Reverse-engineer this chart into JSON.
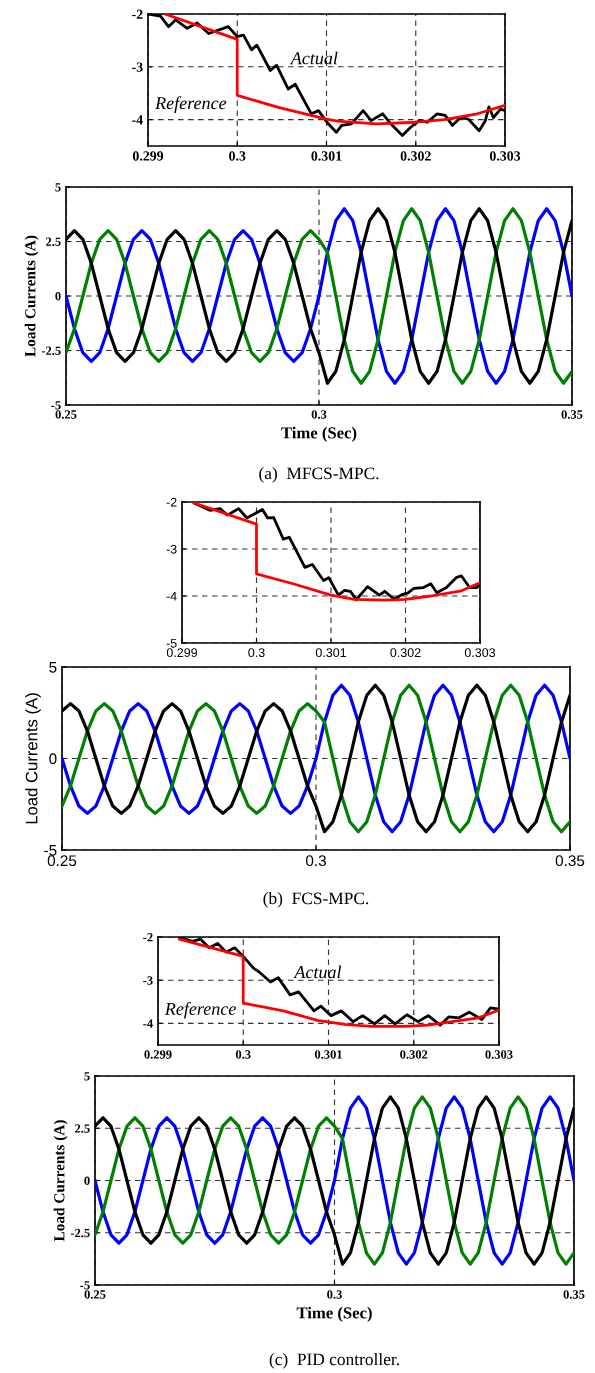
{
  "chart_data": [
    {
      "type": "line",
      "xlim": [
        0.299,
        0.303
      ],
      "ylim": [
        -4.5,
        -2
      ],
      "xticks": [
        0.299,
        0.3,
        0.301,
        0.302,
        0.303
      ],
      "yticks": [
        -2,
        -3,
        -4
      ],
      "grid": true,
      "series": [
        {
          "name": "Actual",
          "color": "#000000",
          "x": [
            0.299,
            0.29914,
            0.29923,
            0.29931,
            0.29944,
            0.29955,
            0.29968,
            0.2999,
            0.3,
            0.30007,
            0.30016,
            0.30022,
            0.30037,
            0.30044,
            0.30057,
            0.30065,
            0.30083,
            0.30091,
            0.30102,
            0.30111,
            0.30117,
            0.30128,
            0.30141,
            0.3015,
            0.30163,
            0.30172,
            0.30185,
            0.30194,
            0.30204,
            0.30213,
            0.30224,
            0.30233,
            0.30241,
            0.3025,
            0.30259,
            0.30271,
            0.30278,
            0.30282,
            0.30287,
            0.30295,
            0.303
          ],
          "values": [
            -2.0,
            -2.04,
            -2.24,
            -2.11,
            -2.27,
            -2.17,
            -2.37,
            -2.24,
            -2.43,
            -2.4,
            -2.68,
            -2.59,
            -3.07,
            -2.97,
            -3.42,
            -3.33,
            -3.89,
            -3.83,
            -4.08,
            -4.24,
            -4.11,
            -4.08,
            -3.83,
            -4.02,
            -3.89,
            -4.08,
            -4.3,
            -4.15,
            -4.02,
            -4.05,
            -3.89,
            -3.92,
            -4.11,
            -3.96,
            -3.99,
            -4.21,
            -4.02,
            -3.76,
            -3.96,
            -3.8,
            -3.83
          ]
        },
        {
          "name": "Reference",
          "color": "#ff0000",
          "x": [
            0.29919,
            0.3,
            0.3,
            0.30046,
            0.301,
            0.30112,
            0.30156,
            0.302,
            0.30232,
            0.30269,
            0.303
          ],
          "values": [
            -2.0,
            -2.48,
            -3.54,
            -3.77,
            -3.99,
            -4.03,
            -4.08,
            -4.05,
            -4.0,
            -3.89,
            -3.73
          ]
        }
      ]
    },
    {
      "type": "line",
      "xlabel": "Time (Sec)",
      "ylabel": "Load Currents (A)",
      "annotations": [
        "(a)  MFCS-MPC."
      ],
      "xlim": [
        0.25,
        0.35
      ],
      "ylim": [
        -5,
        5
      ],
      "xticks": [
        0.25,
        0.3,
        0.35
      ],
      "yticks": [
        5,
        2.5,
        0,
        -2.5,
        -5
      ],
      "grid": true,
      "x": [
        0.25,
        0.25167,
        0.25333,
        0.255,
        0.25667,
        0.25833,
        0.26,
        0.26167,
        0.26333,
        0.265,
        0.26667,
        0.26833,
        0.27,
        0.27167,
        0.27333,
        0.275,
        0.27667,
        0.27833,
        0.28,
        0.28167,
        0.28333,
        0.285,
        0.28667,
        0.28833,
        0.29,
        0.29167,
        0.29333,
        0.295,
        0.29667,
        0.29833,
        0.3,
        0.30167,
        0.30333,
        0.305,
        0.30667,
        0.30833,
        0.31,
        0.31167,
        0.31333,
        0.315,
        0.31667,
        0.31833,
        0.32,
        0.32167,
        0.32333,
        0.325,
        0.32667,
        0.32833,
        0.33,
        0.33167,
        0.33333,
        0.335,
        0.33667,
        0.33833,
        0.34,
        0.34167,
        0.34333,
        0.345,
        0.34667,
        0.34833,
        0.35
      ],
      "series": [
        {
          "color": "#0000ff",
          "values": [
            0,
            -1.5,
            -2.6,
            -3,
            -2.6,
            -1.5,
            0,
            1.5,
            2.6,
            3,
            2.6,
            1.5,
            0,
            -1.5,
            -2.6,
            -3,
            -2.6,
            -1.5,
            0,
            1.5,
            2.6,
            3,
            2.6,
            1.5,
            0,
            -1.5,
            -2.6,
            -3,
            -2.6,
            -1.5,
            0,
            2,
            3.46,
            4,
            3.46,
            2,
            0,
            -2,
            -3.46,
            -4,
            -3.46,
            -2,
            0,
            2,
            3.46,
            4,
            3.46,
            2,
            0,
            -2,
            -3.46,
            -4,
            -3.46,
            -2,
            0,
            2,
            3.46,
            4,
            3.46,
            2,
            0
          ]
        },
        {
          "color": "#008000",
          "values": [
            -2.6,
            -1.5,
            0,
            1.5,
            2.6,
            3,
            2.6,
            1.5,
            0,
            -1.5,
            -2.6,
            -3,
            -2.6,
            -1.5,
            0,
            1.5,
            2.6,
            3,
            2.6,
            1.5,
            0,
            -1.5,
            -2.6,
            -3,
            -2.6,
            -1.5,
            0,
            1.5,
            2.6,
            3,
            2.6,
            2,
            0,
            -2,
            -3.46,
            -4,
            -3.46,
            -2,
            0,
            2,
            3.46,
            4,
            3.46,
            2,
            0,
            -2,
            -3.46,
            -4,
            -3.46,
            -2,
            0,
            2,
            3.46,
            4,
            3.46,
            2,
            0,
            -2,
            -3.46,
            -4,
            -3.46
          ]
        },
        {
          "color": "#000000",
          "values": [
            2.6,
            3,
            2.6,
            1.5,
            0,
            -1.5,
            -2.6,
            -3,
            -2.6,
            -1.5,
            0,
            1.5,
            2.6,
            3,
            2.6,
            1.5,
            0,
            -1.5,
            -2.6,
            -3,
            -2.6,
            -1.5,
            0,
            1.5,
            2.6,
            3,
            2.6,
            1.5,
            0,
            -1.5,
            -2.6,
            -4,
            -3.46,
            -2,
            0,
            2,
            3.46,
            4,
            3.46,
            2,
            0,
            -2,
            -3.46,
            -4,
            -3.46,
            -2,
            0,
            2,
            3.46,
            4,
            3.46,
            2,
            0,
            -2,
            -3.46,
            -4,
            -3.46,
            -2,
            0,
            2,
            3.46
          ]
        }
      ]
    },
    {
      "type": "line",
      "xlim": [
        0.299,
        0.303
      ],
      "ylim": [
        -5,
        -2
      ],
      "xticks": [
        0.299,
        0.3,
        0.301,
        0.302,
        0.303
      ],
      "yticks": [
        -2,
        -3,
        -4,
        -5
      ],
      "grid": true,
      "series": [
        {
          "color": "#000000",
          "x": [
            0.29916,
            0.29938,
            0.29951,
            0.29961,
            0.29976,
            0.29987,
            0.30008,
            0.30015,
            0.30023,
            0.30036,
            0.30044,
            0.30065,
            0.30075,
            0.3009,
            0.30097,
            0.3011,
            0.30118,
            0.30126,
            0.30134,
            0.30149,
            0.30165,
            0.30172,
            0.30185,
            0.30195,
            0.30203,
            0.30211,
            0.30224,
            0.30234,
            0.30242,
            0.30255,
            0.30268,
            0.30275,
            0.30286,
            0.30296,
            0.303
          ],
          "values": [
            -2.02,
            -2.18,
            -2.14,
            -2.28,
            -2.14,
            -2.34,
            -2.16,
            -2.34,
            -2.33,
            -2.79,
            -2.75,
            -3.39,
            -3.33,
            -3.67,
            -3.61,
            -3.98,
            -3.88,
            -3.9,
            -4.08,
            -3.8,
            -3.98,
            -3.9,
            -4.07,
            -3.97,
            -3.94,
            -3.84,
            -3.82,
            -3.74,
            -3.93,
            -3.82,
            -3.61,
            -3.57,
            -3.82,
            -3.82,
            -3.72
          ]
        },
        {
          "color": "#ff0000",
          "x": [
            0.29916,
            0.3,
            0.3,
            0.30049,
            0.301,
            0.30131,
            0.30172,
            0.302,
            0.30234,
            0.30275,
            0.303
          ],
          "values": [
            -2.02,
            -2.47,
            -3.53,
            -3.74,
            -3.98,
            -4.07,
            -4.09,
            -4.07,
            -4.0,
            -3.89,
            -3.72
          ]
        }
      ]
    },
    {
      "type": "line",
      "ylabel": "Load Currents (A)",
      "annotations": [
        "(b)  FCS-MPC."
      ],
      "xlim": [
        0.25,
        0.35
      ],
      "ylim": [
        -5,
        5
      ],
      "xticks": [
        0.25,
        0.3,
        0.35
      ],
      "yticks": [
        5,
        0,
        -5
      ],
      "grid": true,
      "x": [
        0.25,
        0.25167,
        0.25333,
        0.255,
        0.25667,
        0.25833,
        0.26,
        0.26167,
        0.26333,
        0.265,
        0.26667,
        0.26833,
        0.27,
        0.27167,
        0.27333,
        0.275,
        0.27667,
        0.27833,
        0.28,
        0.28167,
        0.28333,
        0.285,
        0.28667,
        0.28833,
        0.29,
        0.29167,
        0.29333,
        0.295,
        0.29667,
        0.29833,
        0.3,
        0.30167,
        0.30333,
        0.305,
        0.30667,
        0.30833,
        0.31,
        0.31167,
        0.31333,
        0.315,
        0.31667,
        0.31833,
        0.32,
        0.32167,
        0.32333,
        0.325,
        0.32667,
        0.32833,
        0.33,
        0.33167,
        0.33333,
        0.335,
        0.33667,
        0.33833,
        0.34,
        0.34167,
        0.34333,
        0.345,
        0.34667,
        0.34833,
        0.35
      ],
      "series": [
        {
          "color": "#0000ff",
          "values": [
            0,
            -1.5,
            -2.6,
            -3,
            -2.6,
            -1.5,
            0,
            1.5,
            2.6,
            3,
            2.6,
            1.5,
            0,
            -1.5,
            -2.6,
            -3,
            -2.6,
            -1.5,
            0,
            1.5,
            2.6,
            3,
            2.6,
            1.5,
            0,
            -1.5,
            -2.6,
            -3,
            -2.6,
            -1.5,
            0,
            2,
            3.46,
            4,
            3.46,
            2,
            0,
            -2,
            -3.46,
            -4,
            -3.46,
            -2,
            0,
            2,
            3.46,
            4,
            3.46,
            2,
            0,
            -2,
            -3.46,
            -4,
            -3.46,
            -2,
            0,
            2,
            3.46,
            4,
            3.46,
            2,
            0
          ]
        },
        {
          "color": "#008000",
          "values": [
            -2.6,
            -1.5,
            0,
            1.5,
            2.6,
            3,
            2.6,
            1.5,
            0,
            -1.5,
            -2.6,
            -3,
            -2.6,
            -1.5,
            0,
            1.5,
            2.6,
            3,
            2.6,
            1.5,
            0,
            -1.5,
            -2.6,
            -3,
            -2.6,
            -1.5,
            0,
            1.5,
            2.6,
            3,
            2.6,
            2,
            0,
            -2,
            -3.46,
            -4,
            -3.46,
            -2,
            0,
            2,
            3.46,
            4,
            3.46,
            2,
            0,
            -2,
            -3.46,
            -4,
            -3.46,
            -2,
            0,
            2,
            3.46,
            4,
            3.46,
            2,
            0,
            -2,
            -3.46,
            -4,
            -3.46
          ]
        },
        {
          "color": "#000000",
          "values": [
            2.6,
            3,
            2.6,
            1.5,
            0,
            -1.5,
            -2.6,
            -3,
            -2.6,
            -1.5,
            0,
            1.5,
            2.6,
            3,
            2.6,
            1.5,
            0,
            -1.5,
            -2.6,
            -3,
            -2.6,
            -1.5,
            0,
            1.5,
            2.6,
            3,
            2.6,
            1.5,
            0,
            -1.5,
            -2.6,
            -4,
            -3.46,
            -2,
            0,
            2,
            3.46,
            4,
            3.46,
            2,
            0,
            -2,
            -3.46,
            -4,
            -3.46,
            -2,
            0,
            2,
            3.46,
            4,
            3.46,
            2,
            0,
            -2,
            -3.46,
            -4,
            -3.46,
            -2,
            0,
            2,
            3.46
          ]
        }
      ]
    },
    {
      "type": "line",
      "xlim": [
        0.299,
        0.303
      ],
      "ylim": [
        -4.5,
        -2
      ],
      "xticks": [
        0.299,
        0.3,
        0.301,
        0.302,
        0.303
      ],
      "yticks": [
        -2,
        -3,
        -4
      ],
      "grid": true,
      "series": [
        {
          "name": "Actual",
          "color": "#000000",
          "x": [
            0.29925,
            0.2994,
            0.2995,
            0.2996,
            0.2997,
            0.2998,
            0.2999,
            0.3,
            0.30012,
            0.30018,
            0.30032,
            0.30041,
            0.30055,
            0.30065,
            0.30083,
            0.30091,
            0.30103,
            0.30115,
            0.30129,
            0.3014,
            0.30154,
            0.30166,
            0.30178,
            0.30192,
            0.30205,
            0.30217,
            0.30231,
            0.30241,
            0.30253,
            0.30265,
            0.3028,
            0.3029,
            0.303
          ],
          "values": [
            -2.0,
            -2.1,
            -2.05,
            -2.25,
            -2.15,
            -2.35,
            -2.25,
            -2.45,
            -2.72,
            -2.8,
            -3.04,
            -2.94,
            -3.34,
            -3.27,
            -3.71,
            -3.6,
            -3.82,
            -3.71,
            -3.96,
            -3.82,
            -4.01,
            -3.82,
            -4.01,
            -3.8,
            -3.96,
            -3.82,
            -4.04,
            -3.85,
            -3.87,
            -3.74,
            -3.91,
            -3.64,
            -3.67
          ]
        },
        {
          "name": "Reference",
          "color": "#ff0000",
          "x": [
            0.29925,
            0.3,
            0.3,
            0.30047,
            0.30087,
            0.30119,
            0.3015,
            0.30189,
            0.30217,
            0.30245,
            0.30276,
            0.303
          ],
          "values": [
            -2.05,
            -2.45,
            -3.53,
            -3.71,
            -3.93,
            -4.02,
            -4.07,
            -4.07,
            -4.04,
            -3.96,
            -3.87,
            -3.69
          ]
        }
      ]
    },
    {
      "type": "line",
      "xlabel": "Time (Sec)",
      "ylabel": "Load Currents (A)",
      "annotations": [
        "(c)  PID controller."
      ],
      "xlim": [
        0.25,
        0.35
      ],
      "ylim": [
        -5,
        5
      ],
      "xticks": [
        0.25,
        0.3,
        0.35
      ],
      "yticks": [
        5,
        2.5,
        0,
        -2.5,
        -5
      ],
      "grid": true,
      "x": [
        0.25,
        0.25167,
        0.25333,
        0.255,
        0.25667,
        0.25833,
        0.26,
        0.26167,
        0.26333,
        0.265,
        0.26667,
        0.26833,
        0.27,
        0.27167,
        0.27333,
        0.275,
        0.27667,
        0.27833,
        0.28,
        0.28167,
        0.28333,
        0.285,
        0.28667,
        0.28833,
        0.29,
        0.29167,
        0.29333,
        0.295,
        0.29667,
        0.29833,
        0.3,
        0.30167,
        0.30333,
        0.305,
        0.30667,
        0.30833,
        0.31,
        0.31167,
        0.31333,
        0.315,
        0.31667,
        0.31833,
        0.32,
        0.32167,
        0.32333,
        0.325,
        0.32667,
        0.32833,
        0.33,
        0.33167,
        0.33333,
        0.335,
        0.33667,
        0.33833,
        0.34,
        0.34167,
        0.34333,
        0.345,
        0.34667,
        0.34833,
        0.35
      ],
      "series": [
        {
          "color": "#0000ff",
          "values": [
            0,
            -1.5,
            -2.6,
            -3,
            -2.6,
            -1.5,
            0,
            1.5,
            2.6,
            3,
            2.6,
            1.5,
            0,
            -1.5,
            -2.6,
            -3,
            -2.6,
            -1.5,
            0,
            1.5,
            2.6,
            3,
            2.6,
            1.5,
            0,
            -1.5,
            -2.6,
            -3,
            -2.6,
            -1.5,
            0,
            2,
            3.46,
            4,
            3.46,
            2,
            0,
            -2,
            -3.46,
            -4,
            -3.46,
            -2,
            0,
            2,
            3.46,
            4,
            3.46,
            2,
            0,
            -2,
            -3.46,
            -4,
            -3.46,
            -2,
            0,
            2,
            3.46,
            4,
            3.46,
            2,
            0
          ]
        },
        {
          "color": "#008000",
          "values": [
            -2.6,
            -1.5,
            0,
            1.5,
            2.6,
            3,
            2.6,
            1.5,
            0,
            -1.5,
            -2.6,
            -3,
            -2.6,
            -1.5,
            0,
            1.5,
            2.6,
            3,
            2.6,
            1.5,
            0,
            -1.5,
            -2.6,
            -3,
            -2.6,
            -1.5,
            0,
            1.5,
            2.6,
            3,
            2.6,
            2,
            0,
            -2,
            -3.46,
            -4,
            -3.46,
            -2,
            0,
            2,
            3.46,
            4,
            3.46,
            2,
            0,
            -2,
            -3.46,
            -4,
            -3.46,
            -2,
            0,
            2,
            3.46,
            4,
            3.46,
            2,
            0,
            -2,
            -3.46,
            -4,
            -3.46
          ]
        },
        {
          "color": "#000000",
          "values": [
            2.6,
            3,
            2.6,
            1.5,
            0,
            -1.5,
            -2.6,
            -3,
            -2.6,
            -1.5,
            0,
            1.5,
            2.6,
            3,
            2.6,
            1.5,
            0,
            -1.5,
            -2.6,
            -3,
            -2.6,
            -1.5,
            0,
            1.5,
            2.6,
            3,
            2.6,
            1.5,
            0,
            -1.5,
            -2.6,
            -4,
            -3.46,
            -2,
            0,
            2,
            3.46,
            4,
            3.46,
            2,
            0,
            -2,
            -3.46,
            -4,
            -3.46,
            -2,
            0,
            2,
            3.46,
            4,
            3.46,
            2,
            0,
            -2,
            -3.46,
            -4,
            -3.46,
            -2,
            0,
            2,
            3.46
          ]
        }
      ]
    }
  ]
}
